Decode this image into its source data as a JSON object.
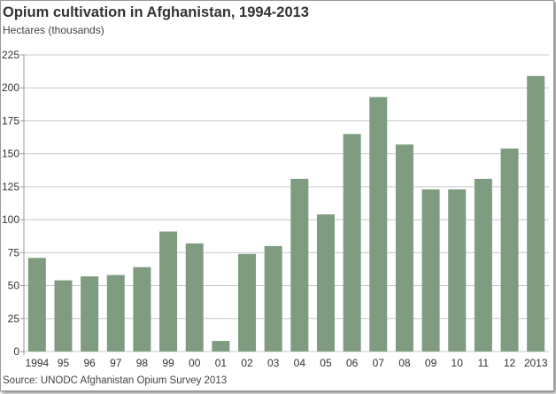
{
  "chart_data": {
    "type": "bar",
    "title": "Opium cultivation in Afghanistan, 1994-2013",
    "ylabel": "Hectares (thousands)",
    "source": "Source: UNODC Afghanistan Opium Survey 2013",
    "categories": [
      "1994",
      "95",
      "96",
      "97",
      "98",
      "99",
      "00",
      "01",
      "02",
      "03",
      "04",
      "05",
      "06",
      "07",
      "08",
      "09",
      "10",
      "11",
      "12",
      "2013"
    ],
    "values": [
      71,
      54,
      57,
      58,
      64,
      91,
      82,
      8,
      74,
      80,
      131,
      104,
      165,
      193,
      157,
      123,
      123,
      131,
      154,
      209
    ],
    "ylim": [
      0,
      225
    ],
    "yticks": [
      "0",
      "25",
      "50",
      "75",
      "100",
      "125",
      "150",
      "175",
      "200",
      "225"
    ],
    "grid": true,
    "bar_color": "#7f9c80"
  }
}
